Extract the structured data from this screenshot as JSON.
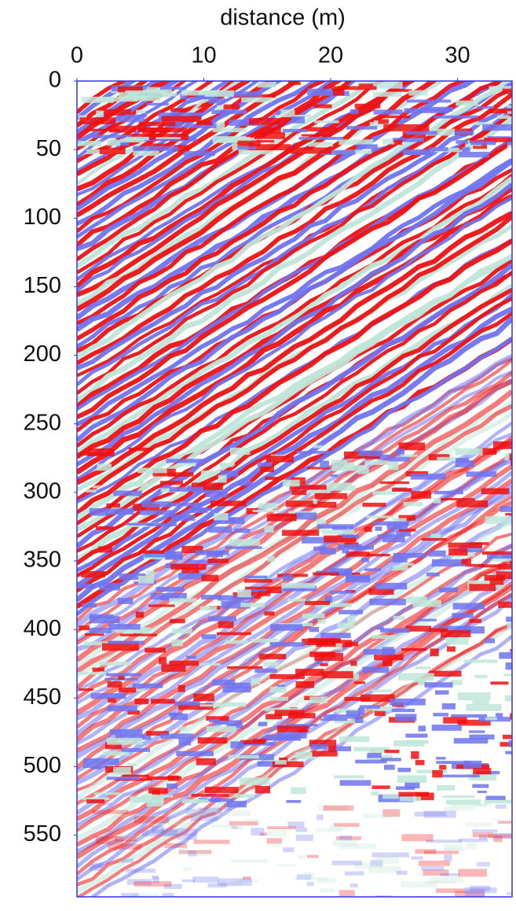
{
  "chart_data": {
    "type": "radargram",
    "x_label": "distance (m)",
    "xlim": [
      0,
      34.3
    ],
    "xticks": [
      0,
      10,
      20,
      30
    ],
    "ylim": [
      0,
      595
    ],
    "yticks": [
      0,
      50,
      100,
      150,
      200,
      250,
      300,
      350,
      400,
      450,
      500,
      550
    ],
    "border_color": "#3333ee"
  }
}
